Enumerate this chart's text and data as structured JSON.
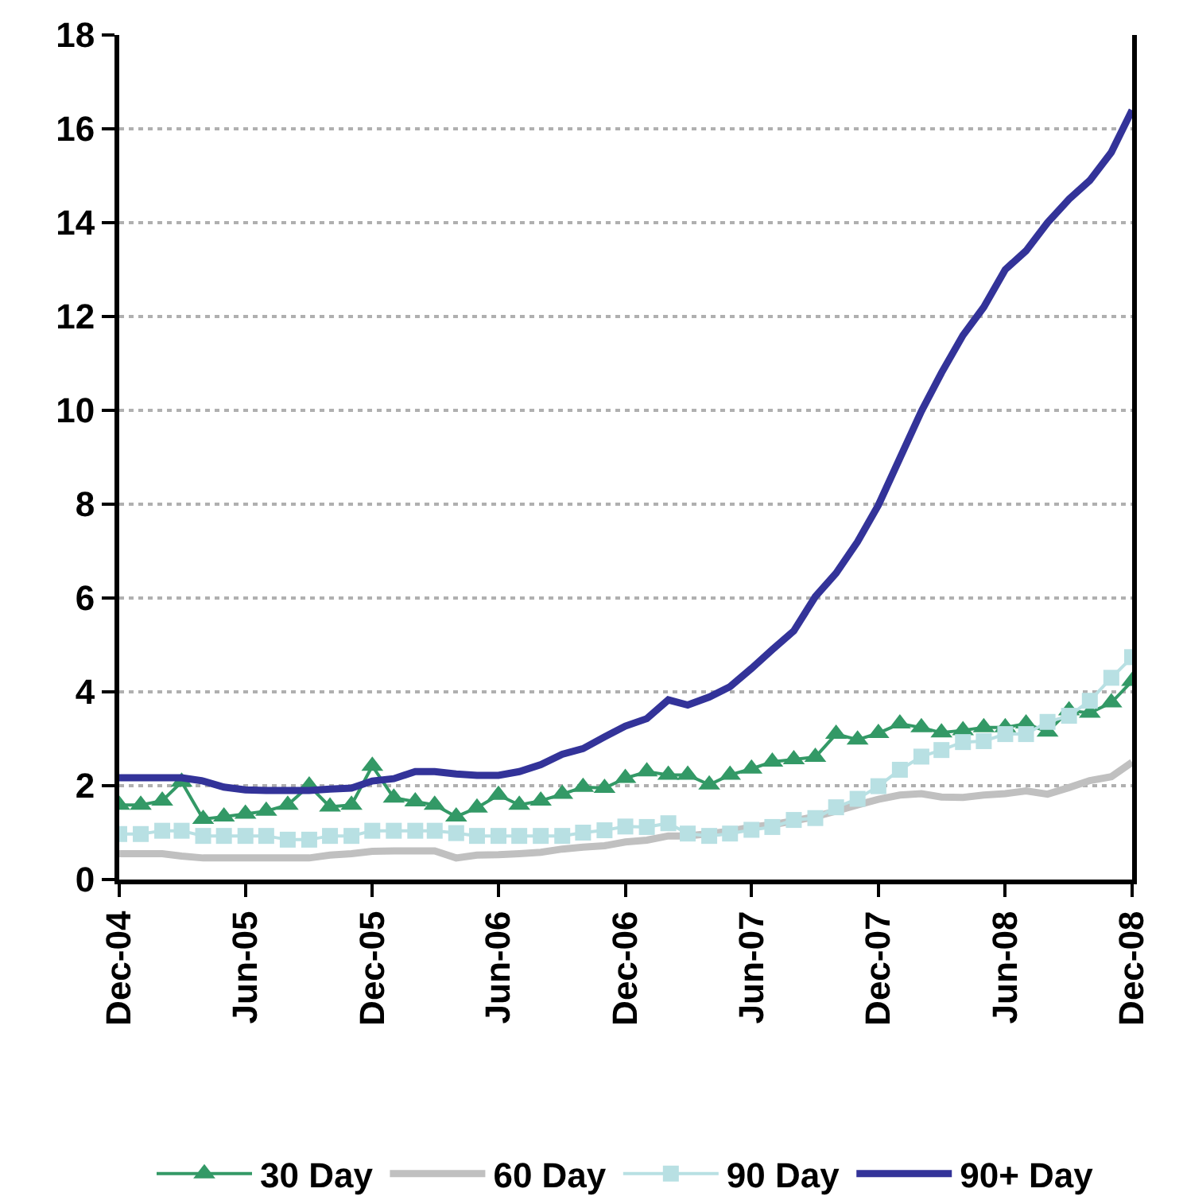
{
  "chart_data": {
    "type": "line",
    "x": [
      "2004-12",
      "2005-01",
      "2005-02",
      "2005-03",
      "2005-04",
      "2005-05",
      "2005-06",
      "2005-07",
      "2005-08",
      "2005-09",
      "2005-10",
      "2005-11",
      "2005-12",
      "2006-01",
      "2006-02",
      "2006-03",
      "2006-04",
      "2006-05",
      "2006-06",
      "2006-07",
      "2006-08",
      "2006-09",
      "2006-10",
      "2006-11",
      "2006-12",
      "2007-01",
      "2007-02",
      "2007-03",
      "2007-04",
      "2007-05",
      "2007-06",
      "2007-07",
      "2007-08",
      "2007-09",
      "2007-10",
      "2007-11",
      "2007-12",
      "2008-01",
      "2008-02",
      "2008-03",
      "2008-04",
      "2008-05",
      "2008-06",
      "2008-07",
      "2008-08",
      "2008-09",
      "2008-10",
      "2008-11",
      "2008-12"
    ],
    "series": [
      {
        "name": "30 Day",
        "color": "#339966",
        "marker": "triangle",
        "values": [
          1.59,
          1.59,
          1.68,
          2.08,
          1.29,
          1.34,
          1.4,
          1.46,
          1.59,
          2.0,
          1.55,
          1.59,
          2.42,
          1.74,
          1.66,
          1.59,
          1.34,
          1.53,
          1.8,
          1.59,
          1.68,
          1.82,
          1.97,
          1.95,
          2.16,
          2.3,
          2.23,
          2.23,
          2.02,
          2.23,
          2.36,
          2.51,
          2.56,
          2.61,
          3.1,
          2.98,
          3.12,
          3.32,
          3.24,
          3.13,
          3.18,
          3.24,
          3.24,
          3.32,
          3.15,
          3.6,
          3.55,
          3.77,
          4.23
        ]
      },
      {
        "name": "60 Day",
        "color": "#c0c0c0",
        "marker": "none",
        "values": [
          0.55,
          0.55,
          0.55,
          0.5,
          0.46,
          0.46,
          0.46,
          0.46,
          0.46,
          0.46,
          0.52,
          0.55,
          0.6,
          0.61,
          0.61,
          0.61,
          0.46,
          0.52,
          0.53,
          0.55,
          0.58,
          0.65,
          0.69,
          0.72,
          0.8,
          0.84,
          0.93,
          0.93,
          0.98,
          1.03,
          1.12,
          1.17,
          1.25,
          1.34,
          1.46,
          1.59,
          1.71,
          1.8,
          1.83,
          1.76,
          1.75,
          1.8,
          1.83,
          1.89,
          1.82,
          1.96,
          2.11,
          2.19,
          2.5
        ]
      },
      {
        "name": "90 Day",
        "color": "#b8e0e3",
        "marker": "square",
        "values": [
          0.97,
          0.97,
          1.04,
          1.04,
          0.93,
          0.93,
          0.93,
          0.93,
          0.85,
          0.85,
          0.93,
          0.93,
          1.04,
          1.04,
          1.04,
          1.04,
          0.99,
          0.93,
          0.93,
          0.93,
          0.93,
          0.93,
          1.0,
          1.05,
          1.13,
          1.12,
          1.2,
          0.98,
          0.93,
          0.98,
          1.06,
          1.12,
          1.27,
          1.31,
          1.54,
          1.72,
          1.99,
          2.34,
          2.62,
          2.76,
          2.93,
          2.95,
          3.1,
          3.1,
          3.36,
          3.49,
          3.81,
          4.3,
          4.74
        ]
      },
      {
        "name": "90+ Day",
        "color": "#333399",
        "marker": "none",
        "values": [
          2.17,
          2.17,
          2.17,
          2.17,
          2.1,
          1.97,
          1.91,
          1.9,
          1.9,
          1.9,
          1.93,
          1.95,
          2.1,
          2.15,
          2.3,
          2.3,
          2.25,
          2.22,
          2.22,
          2.3,
          2.45,
          2.67,
          2.79,
          3.04,
          3.27,
          3.43,
          3.83,
          3.72,
          3.89,
          4.11,
          4.5,
          4.9,
          5.3,
          6.03,
          6.53,
          7.2,
          7.98,
          8.98,
          9.98,
          10.8,
          11.6,
          12.2,
          13.0,
          13.4,
          14.0,
          14.5,
          14.9,
          15.5,
          16.4
        ]
      }
    ],
    "xlim": [
      "2004-12",
      "2008-12"
    ],
    "xticks": [
      {
        "value": "2004-12",
        "label": "Dec-04"
      },
      {
        "value": "2005-06",
        "label": "Jun-05"
      },
      {
        "value": "2005-12",
        "label": "Dec-05"
      },
      {
        "value": "2006-06",
        "label": "Jun-06"
      },
      {
        "value": "2006-12",
        "label": "Dec-06"
      },
      {
        "value": "2007-06",
        "label": "Jun-07"
      },
      {
        "value": "2007-12",
        "label": "Dec-07"
      },
      {
        "value": "2008-06",
        "label": "Jun-08"
      },
      {
        "value": "2008-12",
        "label": "Dec-08"
      }
    ],
    "ylim": [
      0,
      18
    ],
    "yticks": [
      0,
      2,
      4,
      6,
      8,
      10,
      12,
      14,
      16,
      18
    ],
    "grid": "y",
    "line_style": "solid",
    "legend": "bottom"
  }
}
